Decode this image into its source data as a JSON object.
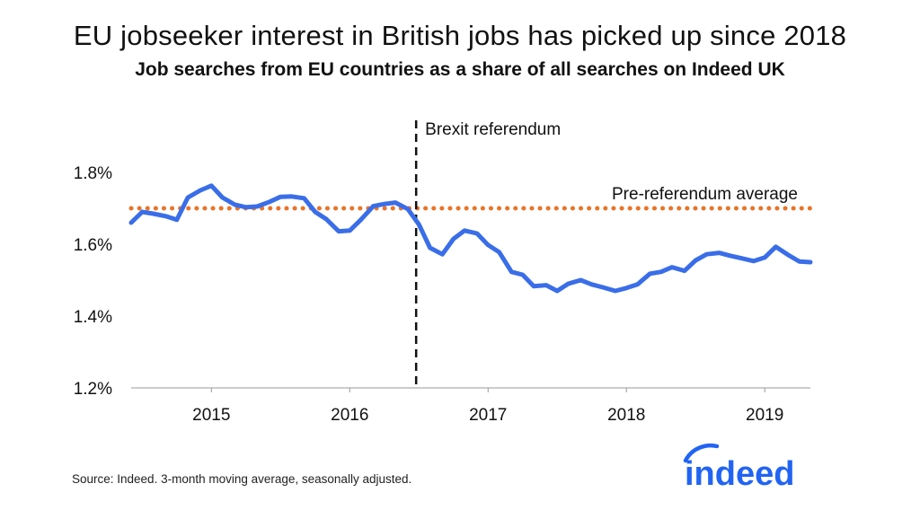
{
  "header": {
    "title": "EU jobseeker interest in British jobs has picked up since 2018",
    "subtitle": "Job searches from EU countries as a share of all searches on Indeed UK"
  },
  "footer": {
    "source": "Source: Indeed. 3-month moving average, seasonally adjusted."
  },
  "logo": {
    "text": "indeed",
    "color": "#2164f3"
  },
  "colors": {
    "series": "#3a6ee8",
    "average_line": "#e8742a",
    "referendum_line": "#111111",
    "axis": "#999999",
    "text": "#111111"
  },
  "chart_data": {
    "type": "line",
    "title": "EU jobseeker interest in British jobs has picked up since 2018",
    "subtitle": "Job searches from EU countries as a share of all searches on Indeed UK",
    "xlabel": "",
    "ylabel": "",
    "x_range": [
      2014.42,
      2019.33
    ],
    "ylim": [
      1.2,
      1.9
    ],
    "x_ticks": [
      {
        "value": 2015.0,
        "label": "2015"
      },
      {
        "value": 2016.0,
        "label": "2016"
      },
      {
        "value": 2017.0,
        "label": "2017"
      },
      {
        "value": 2018.0,
        "label": "2018"
      },
      {
        "value": 2019.0,
        "label": "2019"
      }
    ],
    "y_ticks": [
      {
        "value": 1.2,
        "label": "1.2%"
      },
      {
        "value": 1.4,
        "label": "1.4%"
      },
      {
        "value": 1.6,
        "label": "1.6%"
      },
      {
        "value": 1.8,
        "label": "1.8%"
      }
    ],
    "grid": false,
    "series": [
      {
        "name": "Job searches from EU countries (% of all searches)",
        "x": [
          2014.42,
          2014.5,
          2014.58,
          2014.67,
          2014.75,
          2014.83,
          2014.92,
          2015.0,
          2015.08,
          2015.17,
          2015.25,
          2015.33,
          2015.42,
          2015.5,
          2015.58,
          2015.67,
          2015.75,
          2015.83,
          2015.92,
          2016.0,
          2016.08,
          2016.17,
          2016.25,
          2016.33,
          2016.42,
          2016.5,
          2016.58,
          2016.67,
          2016.75,
          2016.83,
          2016.92,
          2017.0,
          2017.08,
          2017.17,
          2017.25,
          2017.33,
          2017.42,
          2017.5,
          2017.58,
          2017.67,
          2017.75,
          2017.83,
          2017.92,
          2018.0,
          2018.08,
          2018.17,
          2018.25,
          2018.33,
          2018.42,
          2018.5,
          2018.58,
          2018.67,
          2018.75,
          2018.83,
          2018.92,
          2019.0,
          2019.08,
          2019.17,
          2019.25,
          2019.33
        ],
        "values": [
          1.66,
          1.69,
          1.685,
          1.678,
          1.668,
          1.73,
          1.75,
          1.763,
          1.73,
          1.71,
          1.703,
          1.705,
          1.718,
          1.732,
          1.733,
          1.728,
          1.69,
          1.67,
          1.636,
          1.638,
          1.668,
          1.706,
          1.712,
          1.716,
          1.698,
          1.655,
          1.59,
          1.572,
          1.615,
          1.638,
          1.63,
          1.598,
          1.578,
          1.523,
          1.515,
          1.483,
          1.486,
          1.47,
          1.49,
          1.5,
          1.488,
          1.48,
          1.47,
          1.478,
          1.488,
          1.518,
          1.523,
          1.536,
          1.526,
          1.555,
          1.572,
          1.576,
          1.568,
          1.561,
          1.553,
          1.563,
          1.593,
          1.57,
          1.552,
          1.55
        ]
      }
    ],
    "reference_lines": [
      {
        "orientation": "horizontal",
        "value": 1.7,
        "label": "Pre-referendum average",
        "style": "dotted"
      },
      {
        "orientation": "vertical",
        "value": 2016.48,
        "label": "Brexit referendum",
        "style": "dashed"
      }
    ]
  }
}
